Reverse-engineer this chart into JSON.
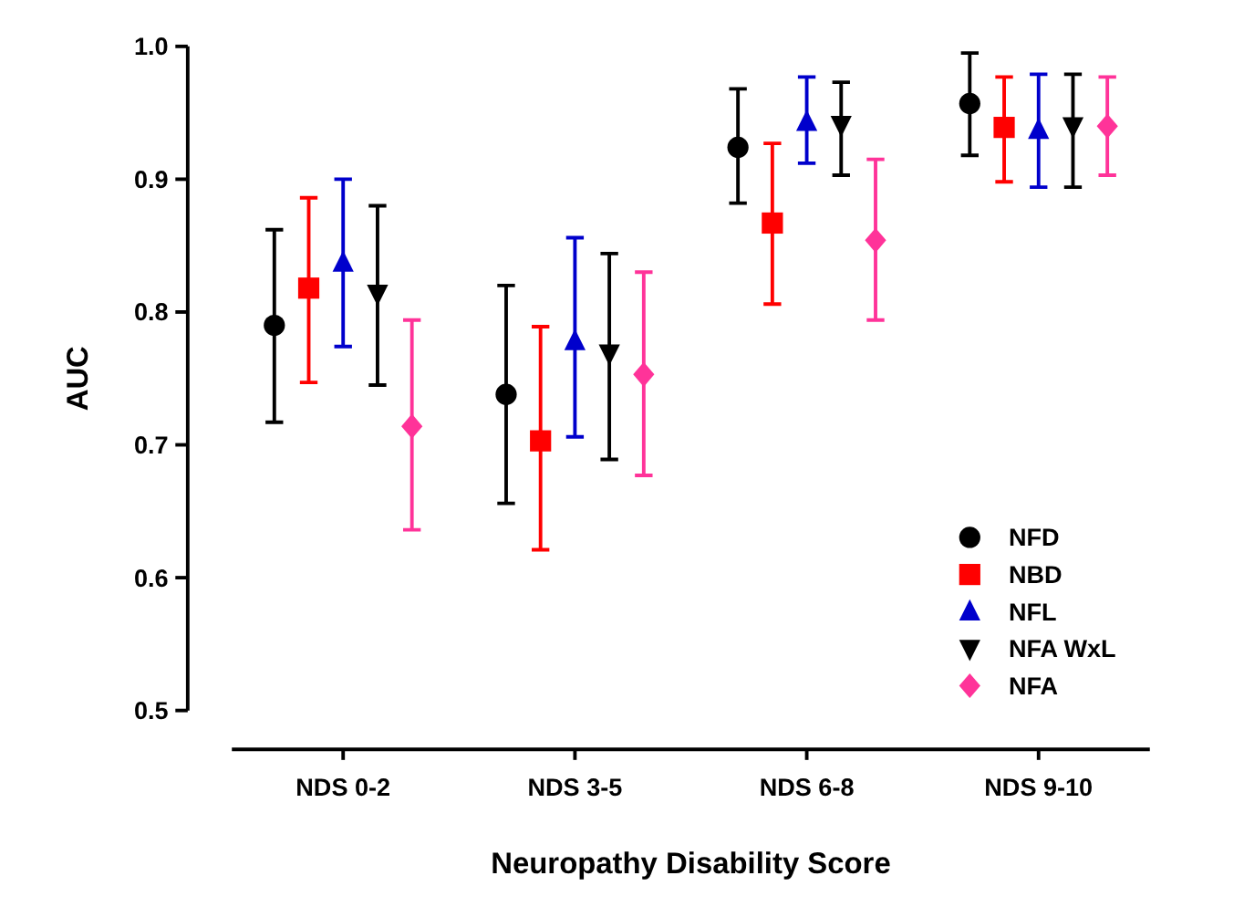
{
  "chart_data": {
    "type": "scatter",
    "xlabel": "Neuropathy Disability Score",
    "ylabel": "AUC",
    "categories": [
      "NDS 0-2",
      "NDS 3-5",
      "NDS 6-8",
      "NDS 9-10"
    ],
    "ylim": [
      0.5,
      1.0
    ],
    "yticks": [
      0.5,
      0.6,
      0.7,
      0.8,
      0.9,
      {
        "value": 1,
        "label": "1.0"
      }
    ],
    "grid": false,
    "legend": "bottom right",
    "series": [
      {
        "name": "NFD",
        "color": "#000000",
        "marker": "circle",
        "values": [
          0.79,
          0.738,
          0.924,
          0.957
        ],
        "errors": [
          [
            0.717,
            0.862
          ],
          [
            0.656,
            0.82
          ],
          [
            0.882,
            0.968
          ],
          [
            0.918,
            0.995
          ]
        ]
      },
      {
        "name": "NBD",
        "color": "#ff0000",
        "marker": "square",
        "values": [
          0.818,
          0.703,
          0.867,
          0.939
        ],
        "errors": [
          [
            0.747,
            0.886
          ],
          [
            0.621,
            0.789
          ],
          [
            0.806,
            0.927
          ],
          [
            0.898,
            0.977
          ]
        ]
      },
      {
        "name": "NFL",
        "color": "#0000cc",
        "marker": "triangle",
        "values": [
          0.837,
          0.778,
          0.943,
          0.937
        ],
        "errors": [
          [
            0.774,
            0.9
          ],
          [
            0.706,
            0.856
          ],
          [
            0.912,
            0.977
          ],
          [
            0.894,
            0.979
          ]
        ]
      },
      {
        "name": "NFA WxL",
        "color": "#000000",
        "marker": "triangle-down",
        "values": [
          0.814,
          0.769,
          0.941,
          0.94
        ],
        "errors": [
          [
            0.745,
            0.88
          ],
          [
            0.689,
            0.844
          ],
          [
            0.903,
            0.973
          ],
          [
            0.894,
            0.979
          ]
        ]
      },
      {
        "name": "NFA",
        "color": "#ff3399",
        "marker": "diamond",
        "values": [
          0.714,
          0.753,
          0.854,
          0.94
        ],
        "errors": [
          [
            0.636,
            0.794
          ],
          [
            0.677,
            0.83
          ],
          [
            0.794,
            0.915
          ],
          [
            0.903,
            0.977
          ]
        ]
      }
    ]
  }
}
